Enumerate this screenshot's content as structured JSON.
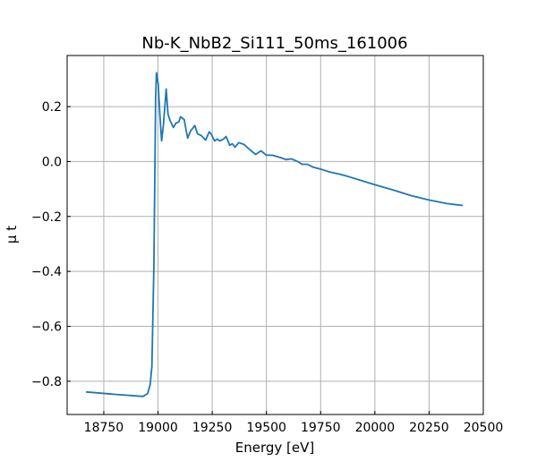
{
  "chart_data": {
    "type": "line",
    "title": "Nb-K_NbB2_Si111_50ms_161006",
    "xlabel": "Energy [eV]",
    "ylabel": "μ t",
    "xlim": [
      18581,
      20500
    ],
    "ylim": [
      -0.921,
      0.386
    ],
    "xticks": [
      18750,
      19000,
      19250,
      19500,
      19750,
      20000,
      20250,
      20500
    ],
    "yticks": [
      -0.8,
      -0.6,
      -0.4,
      -0.2,
      0.0,
      0.2
    ],
    "ytick_labels": [
      "−0.8",
      "−0.6",
      "−0.4",
      "−0.2",
      "0.0",
      "0.2"
    ],
    "grid": true,
    "color": "#1f77b4",
    "series": [
      {
        "x": [
          18668,
          18808,
          18931,
          18952,
          18964,
          18972,
          18981,
          18989,
          18993,
          19001,
          19009,
          19017,
          19025,
          19038,
          19046,
          19055,
          19071,
          19083,
          19096,
          19104,
          19121,
          19129,
          19137,
          19150,
          19170,
          19182,
          19199,
          19220,
          19236,
          19244,
          19261,
          19273,
          19285,
          19302,
          19314,
          19331,
          19343,
          19355,
          19372,
          19397,
          19425,
          19450,
          19475,
          19500,
          19528,
          19570,
          19590,
          19615,
          19644,
          19664,
          19689,
          19714,
          19755,
          19796,
          19837,
          19879,
          19920,
          20002,
          20085,
          20167,
          20249,
          20332,
          20406
        ],
        "y": [
          -0.839,
          -0.848,
          -0.855,
          -0.845,
          -0.812,
          -0.747,
          -0.388,
          0.232,
          0.323,
          0.281,
          0.166,
          0.075,
          0.134,
          0.264,
          0.173,
          0.15,
          0.124,
          0.14,
          0.144,
          0.163,
          0.153,
          0.117,
          0.085,
          0.111,
          0.131,
          0.101,
          0.095,
          0.078,
          0.108,
          0.101,
          0.075,
          0.082,
          0.075,
          0.082,
          0.091,
          0.059,
          0.065,
          0.052,
          0.069,
          0.062,
          0.042,
          0.026,
          0.039,
          0.023,
          0.023,
          0.013,
          0.007,
          0.01,
          0.0,
          -0.01,
          -0.01,
          -0.02,
          -0.029,
          -0.039,
          -0.046,
          -0.055,
          -0.065,
          -0.085,
          -0.104,
          -0.124,
          -0.14,
          -0.153,
          -0.16
        ]
      }
    ]
  }
}
